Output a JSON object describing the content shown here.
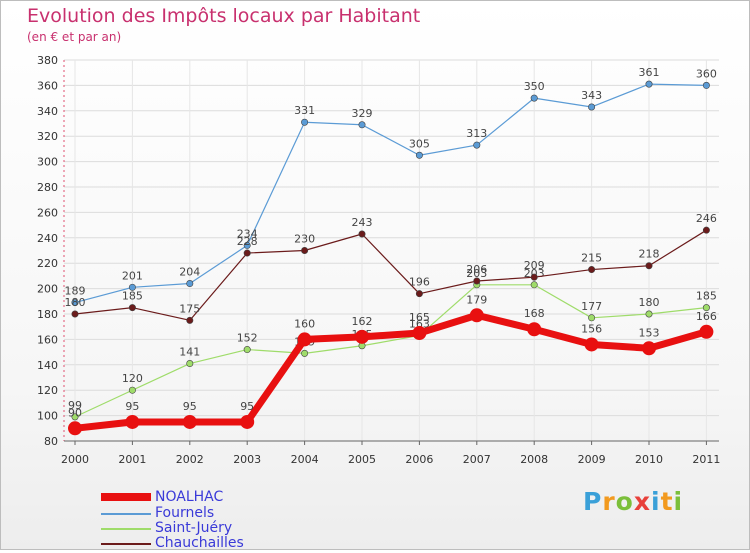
{
  "header": {
    "title": "Evolution des Impôts locaux par Habitant",
    "subtitle": "(en € et par an)"
  },
  "logo": {
    "text": "Proxiti"
  },
  "colors": {
    "NOALHAC": "#e81010",
    "Fournels": "#5b9bd5",
    "Saint-Juéry": "#9fdc6a",
    "Chauchailles": "#6b1b1b"
  },
  "chart_data": {
    "type": "line",
    "title": "Evolution des Impôts locaux par Habitant",
    "subtitle": "(en € et par an)",
    "xlabel": "",
    "ylabel": "",
    "ylim": [
      80,
      380
    ],
    "yticks": [
      80,
      100,
      120,
      140,
      160,
      180,
      200,
      220,
      240,
      260,
      280,
      300,
      320,
      340,
      360,
      380
    ],
    "x": [
      "2000",
      "2001",
      "2002",
      "2003",
      "2004",
      "2005",
      "2006",
      "2007",
      "2008",
      "2009",
      "2010",
      "2011"
    ],
    "legend_position": "bottom-left",
    "series": [
      {
        "name": "NOALHAC",
        "values": [
          90,
          95,
          95,
          95,
          160,
          162,
          165,
          179,
          168,
          156,
          153,
          166
        ]
      },
      {
        "name": "Fournels",
        "values": [
          189,
          201,
          204,
          234,
          331,
          329,
          305,
          313,
          350,
          343,
          361,
          360
        ]
      },
      {
        "name": "Saint-Juéry",
        "values": [
          99,
          120,
          141,
          152,
          149,
          155,
          163,
          203,
          203,
          177,
          180,
          185
        ]
      },
      {
        "name": "Chauchailles",
        "values": [
          180,
          185,
          175,
          228,
          230,
          243,
          196,
          206,
          209,
          215,
          218,
          246
        ]
      }
    ]
  }
}
